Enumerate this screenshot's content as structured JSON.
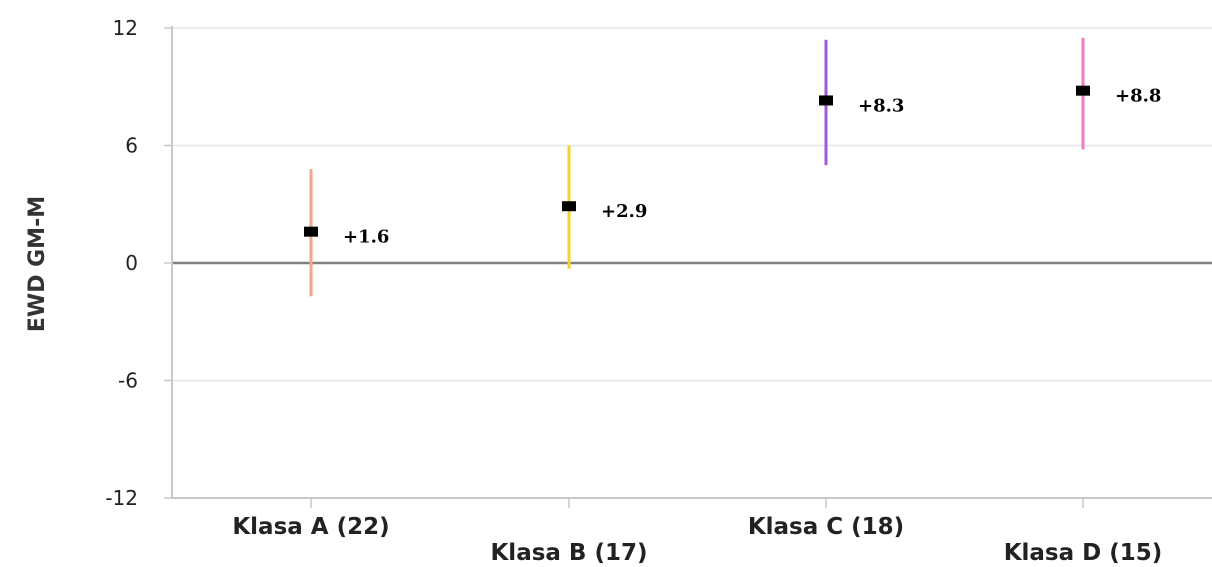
{
  "chart_data": {
    "type": "scatter",
    "title": "",
    "xlabel": "",
    "ylabel": "EWD GM-M",
    "ylim": [
      -12,
      12
    ],
    "yticks": [
      12,
      6,
      0,
      -6,
      -12
    ],
    "ytick_labels": [
      "12",
      "6",
      "0",
      "-6",
      "-12"
    ],
    "grid": true,
    "legend": "none",
    "categories": [
      "Klasa A (22)",
      "Klasa B (17)",
      "Klasa C (18)",
      "Klasa D (15)"
    ],
    "values": [
      1.6,
      2.9,
      8.3,
      8.8
    ],
    "value_labels": [
      "+1.6",
      "+2.9",
      "+8.3",
      "+8.8"
    ],
    "error_low": [
      -1.7,
      -0.3,
      5.0,
      5.8
    ],
    "error_high": [
      4.8,
      6.0,
      11.4,
      11.5
    ],
    "colors": [
      "#f4a58a",
      "#f5d231",
      "#a05ad6",
      "#f27bc2"
    ],
    "marker_color": "#000000",
    "grid_color": "#e6e6e6",
    "zero_line_color": "#808080",
    "axis_color": "#c8c8c8"
  }
}
